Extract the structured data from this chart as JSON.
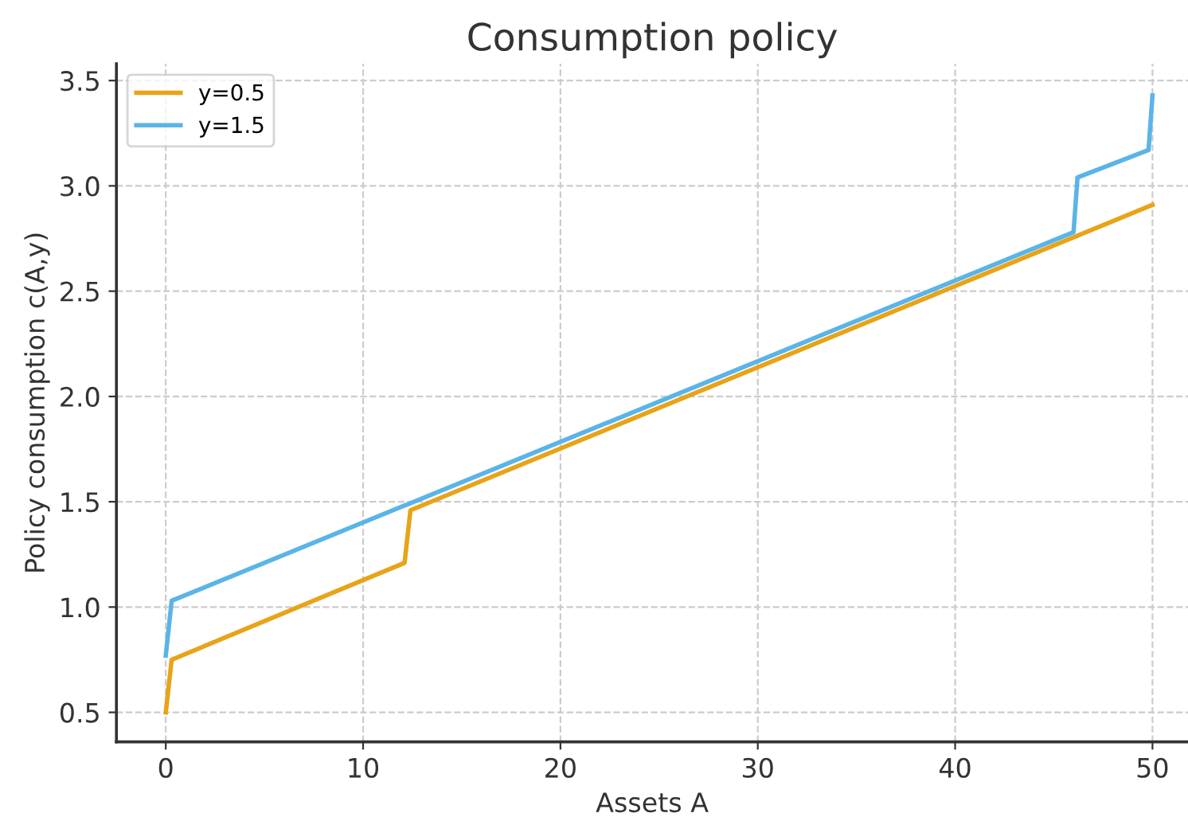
{
  "chart_data": {
    "type": "line",
    "title": "Consumption policy",
    "xlabel": "Assets A",
    "ylabel": "Policy consumption c(A,y)",
    "series": [
      {
        "name": "y=0.5",
        "color": "#e8a317",
        "x": [
          0,
          0.3,
          12.1,
          12.4,
          50
        ],
        "values": [
          0.5,
          0.75,
          1.21,
          1.46,
          2.91
        ]
      },
      {
        "name": "y=1.5",
        "color": "#5ab4e8",
        "x": [
          0,
          0.3,
          46.0,
          46.2,
          49.8,
          50
        ],
        "values": [
          0.77,
          1.03,
          2.78,
          3.04,
          3.17,
          3.43
        ]
      }
    ],
    "xlim": [
      -2.5,
      51.8
    ],
    "ylim": [
      0.36,
      3.58
    ],
    "xticks": [
      0,
      10,
      20,
      30,
      40,
      50
    ],
    "yticks": [
      0.5,
      {
        "value": 1,
        "label": "1.0"
      },
      1.5,
      {
        "value": 2,
        "label": "2.0"
      },
      2.5,
      {
        "value": 3,
        "label": "3.0"
      },
      3.5
    ],
    "grid": true,
    "legend": "top left",
    "marker": "none",
    "line_style": "solid"
  }
}
